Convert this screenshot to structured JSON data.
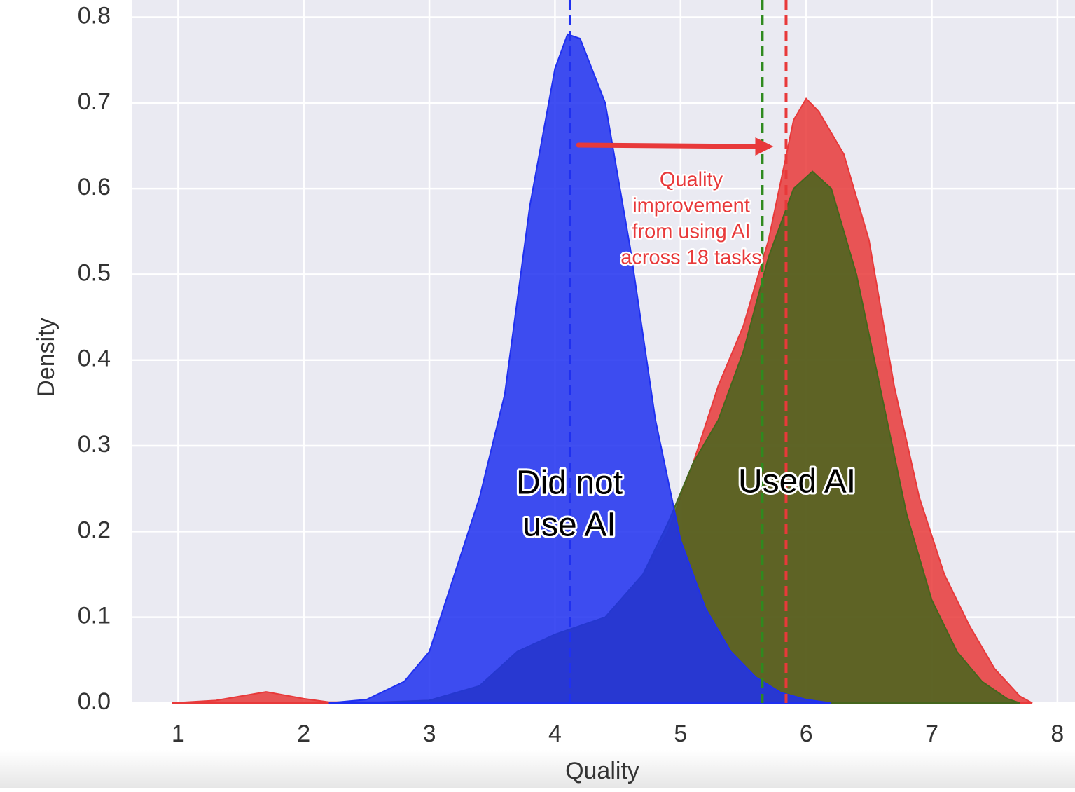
{
  "chart_data": {
    "type": "area",
    "xlabel": "Quality",
    "ylabel": "Density",
    "xlim": [
      0.63,
      8.14
    ],
    "ylim": [
      0,
      0.82
    ],
    "xticks": [
      1,
      2,
      3,
      4,
      5,
      6,
      7,
      8
    ],
    "yticks": [
      {
        "value": 0,
        "label": "0.0"
      },
      0.1,
      0.2,
      0.3,
      0.4,
      0.5,
      0.6,
      0.7,
      0.8
    ],
    "grid": true,
    "series": [
      {
        "color": "#e8393a",
        "x": [
          0.95,
          1.3,
          1.7,
          2.0,
          2.2,
          2.6,
          3.0,
          3.4,
          3.7,
          4.0,
          4.4,
          4.7,
          4.9,
          5.1,
          5.3,
          5.5,
          5.7,
          5.9,
          6.0,
          6.1,
          6.3,
          6.5,
          6.7,
          6.9,
          7.1,
          7.3,
          7.5,
          7.7,
          7.8
        ],
        "values": [
          0,
          0.003,
          0.013,
          0.005,
          0.001,
          0.001,
          0.003,
          0.02,
          0.06,
          0.08,
          0.1,
          0.15,
          0.2,
          0.28,
          0.37,
          0.44,
          0.54,
          0.68,
          0.705,
          0.69,
          0.64,
          0.54,
          0.37,
          0.24,
          0.15,
          0.09,
          0.04,
          0.008,
          0
        ]
      },
      {
        "color": "#45661d",
        "x": [
          2.5,
          3.0,
          3.4,
          3.7,
          4.0,
          4.4,
          4.7,
          4.9,
          5.1,
          5.3,
          5.5,
          5.7,
          5.9,
          6.05,
          6.2,
          6.4,
          6.6,
          6.8,
          7.0,
          7.2,
          7.4,
          7.6,
          7.7
        ],
        "values": [
          0,
          0.003,
          0.02,
          0.06,
          0.08,
          0.1,
          0.15,
          0.21,
          0.28,
          0.33,
          0.41,
          0.52,
          0.6,
          0.62,
          0.6,
          0.5,
          0.36,
          0.22,
          0.12,
          0.06,
          0.025,
          0.005,
          0
        ]
      },
      {
        "color": "#1f30f0",
        "x": [
          2.2,
          2.5,
          2.8,
          3.0,
          3.2,
          3.4,
          3.6,
          3.8,
          4.0,
          4.1,
          4.2,
          4.4,
          4.6,
          4.8,
          5.0,
          5.2,
          5.4,
          5.6,
          5.8,
          6.0,
          6.2
        ],
        "values": [
          0,
          0.004,
          0.025,
          0.06,
          0.15,
          0.24,
          0.36,
          0.58,
          0.74,
          0.78,
          0.775,
          0.7,
          0.53,
          0.33,
          0.19,
          0.11,
          0.06,
          0.03,
          0.012,
          0.004,
          0
        ]
      }
    ],
    "vlines": [
      {
        "x": 4.12,
        "color": "#1f30f0"
      },
      {
        "x": 5.65,
        "color": "#2f8a1f"
      },
      {
        "x": 5.84,
        "color": "#e8393a"
      }
    ],
    "annotations": [
      {
        "lines": [
          "Quality",
          "improvement",
          "from using AI",
          "across 18 tasks"
        ],
        "color": "#e8393a"
      },
      {
        "lines": [
          "Did not",
          "use AI"
        ],
        "color": "#000000"
      },
      {
        "lines": [
          "Used AI"
        ],
        "color": "#000000"
      }
    ]
  }
}
